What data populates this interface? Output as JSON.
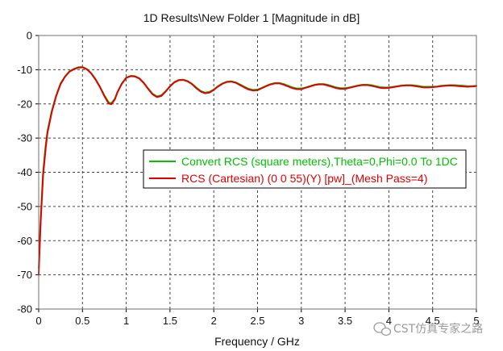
{
  "chart_data": {
    "type": "line",
    "title": "1D Results\\New Folder 1 [Magnitude in dB]",
    "xlabel": "Frequency / GHz",
    "ylabel": "",
    "xlim": [
      0,
      5
    ],
    "ylim": [
      -80,
      0
    ],
    "x_ticks": [
      "0",
      "0.5",
      "1",
      "1.5",
      "2",
      "2.5",
      "3",
      "3.5",
      "4",
      "4.5",
      "5"
    ],
    "y_ticks": [
      "0",
      "-10",
      "-20",
      "-30",
      "-40",
      "-50",
      "-60",
      "-70",
      "-80"
    ],
    "grid": true,
    "grid_style": "dashed",
    "legend_position": "center-right",
    "series": [
      {
        "name": "Convert RCS (square meters),Theta=0,Phi=0.0 To 1DC",
        "color": "#00c000",
        "x": [
          0.0,
          0.02,
          0.05,
          0.08,
          0.1,
          0.15,
          0.2,
          0.25,
          0.3,
          0.35,
          0.4,
          0.45,
          0.5,
          0.55,
          0.6,
          0.65,
          0.7,
          0.75,
          0.8,
          0.83,
          0.87,
          0.9,
          0.95,
          1.0,
          1.05,
          1.1,
          1.15,
          1.2,
          1.25,
          1.3,
          1.35,
          1.4,
          1.45,
          1.5,
          1.55,
          1.6,
          1.65,
          1.7,
          1.75,
          1.8,
          1.85,
          1.9,
          1.95,
          2.0,
          2.05,
          2.1,
          2.15,
          2.2,
          2.25,
          2.3,
          2.35,
          2.4,
          2.45,
          2.5,
          2.55,
          2.6,
          2.65,
          2.7,
          2.75,
          2.8,
          2.85,
          2.9,
          2.95,
          3.0,
          3.05,
          3.1,
          3.15,
          3.2,
          3.25,
          3.3,
          3.35,
          3.4,
          3.45,
          3.5,
          3.55,
          3.6,
          3.65,
          3.7,
          3.75,
          3.8,
          3.85,
          3.9,
          3.95,
          4.0,
          4.05,
          4.1,
          4.15,
          4.2,
          4.25,
          4.3,
          4.35,
          4.4,
          4.45,
          4.5,
          4.55,
          4.6,
          4.65,
          4.7,
          4.75,
          4.8,
          4.85,
          4.9,
          4.95,
          5.0
        ],
        "values": [
          -68,
          -55,
          -40,
          -32,
          -28,
          -22,
          -17.5,
          -14,
          -12,
          -10.5,
          -9.8,
          -9.3,
          -9.2,
          -9.8,
          -11,
          -12.8,
          -15,
          -17.5,
          -19.6,
          -19.8,
          -18.5,
          -16.5,
          -14,
          -12.3,
          -11.8,
          -11.9,
          -12.5,
          -13.8,
          -15.5,
          -17,
          -17.8,
          -17.5,
          -16.3,
          -14.8,
          -13.6,
          -13,
          -12.9,
          -13.3,
          -14.1,
          -15.2,
          -16.2,
          -16.7,
          -16.5,
          -15.8,
          -14.8,
          -14,
          -13.5,
          -13.4,
          -13.7,
          -14.3,
          -15,
          -15.6,
          -15.9,
          -15.8,
          -15.3,
          -14.7,
          -14.2,
          -13.9,
          -13.9,
          -14.2,
          -14.7,
          -15.2,
          -15.5,
          -15.5,
          -15.2,
          -14.8,
          -14.4,
          -14.2,
          -14.2,
          -14.4,
          -14.8,
          -15.2,
          -15.4,
          -15.4,
          -15.2,
          -14.9,
          -14.6,
          -14.4,
          -14.4,
          -14.5,
          -14.8,
          -15.1,
          -15.2,
          -15.2,
          -15.0,
          -14.8,
          -14.6,
          -14.5,
          -14.5,
          -14.6,
          -14.8,
          -15.0,
          -15.0,
          -15.0,
          -14.9,
          -14.7,
          -14.6,
          -14.5,
          -14.5,
          -14.6,
          -14.7,
          -14.8,
          -14.8,
          -14.7
        ]
      },
      {
        "name": "RCS (Cartesian) (0 0 55)(Y) [pw]_(Mesh Pass=4)",
        "color": "#e00000",
        "x": [
          0.0,
          0.02,
          0.05,
          0.08,
          0.1,
          0.15,
          0.2,
          0.25,
          0.3,
          0.35,
          0.4,
          0.45,
          0.5,
          0.55,
          0.6,
          0.65,
          0.7,
          0.75,
          0.8,
          0.83,
          0.87,
          0.9,
          0.95,
          1.0,
          1.05,
          1.1,
          1.15,
          1.2,
          1.25,
          1.3,
          1.35,
          1.4,
          1.45,
          1.5,
          1.55,
          1.6,
          1.65,
          1.7,
          1.75,
          1.8,
          1.85,
          1.9,
          1.95,
          2.0,
          2.05,
          2.1,
          2.15,
          2.2,
          2.25,
          2.3,
          2.35,
          2.4,
          2.45,
          2.5,
          2.55,
          2.6,
          2.65,
          2.7,
          2.75,
          2.8,
          2.85,
          2.9,
          2.95,
          3.0,
          3.05,
          3.1,
          3.15,
          3.2,
          3.25,
          3.3,
          3.35,
          3.4,
          3.45,
          3.5,
          3.55,
          3.6,
          3.65,
          3.7,
          3.75,
          3.8,
          3.85,
          3.9,
          3.95,
          4.0,
          4.05,
          4.1,
          4.15,
          4.2,
          4.25,
          4.3,
          4.35,
          4.4,
          4.45,
          4.5,
          4.55,
          4.6,
          4.65,
          4.7,
          4.75,
          4.8,
          4.85,
          4.9,
          4.95,
          5.0
        ],
        "values": [
          -70,
          -56,
          -41,
          -33,
          -28.5,
          -22.3,
          -17.7,
          -14.2,
          -12.1,
          -10.6,
          -9.9,
          -9.4,
          -9.3,
          -9.9,
          -11.1,
          -12.9,
          -15.1,
          -17.7,
          -19.9,
          -20.1,
          -18.7,
          -16.6,
          -14.1,
          -12.4,
          -11.9,
          -12.0,
          -12.6,
          -13.9,
          -15.6,
          -17.2,
          -18.0,
          -17.7,
          -16.4,
          -14.9,
          -13.7,
          -13.1,
          -13.0,
          -13.4,
          -14.2,
          -15.4,
          -16.4,
          -16.9,
          -16.7,
          -15.9,
          -14.9,
          -14.1,
          -13.6,
          -13.5,
          -13.8,
          -14.5,
          -15.2,
          -15.8,
          -16.1,
          -16.0,
          -15.4,
          -14.8,
          -14.3,
          -14.0,
          -14.0,
          -14.4,
          -14.9,
          -15.4,
          -15.7,
          -15.7,
          -15.3,
          -14.9,
          -14.5,
          -14.3,
          -14.3,
          -14.6,
          -15.0,
          -15.4,
          -15.6,
          -15.6,
          -15.3,
          -15.0,
          -14.7,
          -14.5,
          -14.5,
          -14.7,
          -15.0,
          -15.3,
          -15.4,
          -15.3,
          -15.1,
          -14.9,
          -14.7,
          -14.6,
          -14.6,
          -14.8,
          -15.0,
          -15.2,
          -15.2,
          -15.1,
          -15.0,
          -14.8,
          -14.7,
          -14.6,
          -14.7,
          -14.8,
          -14.9,
          -15.0,
          -14.9,
          -14.8
        ]
      }
    ]
  },
  "watermark": {
    "text": "CST仿真专家之路",
    "icon": "wechat-icon"
  }
}
